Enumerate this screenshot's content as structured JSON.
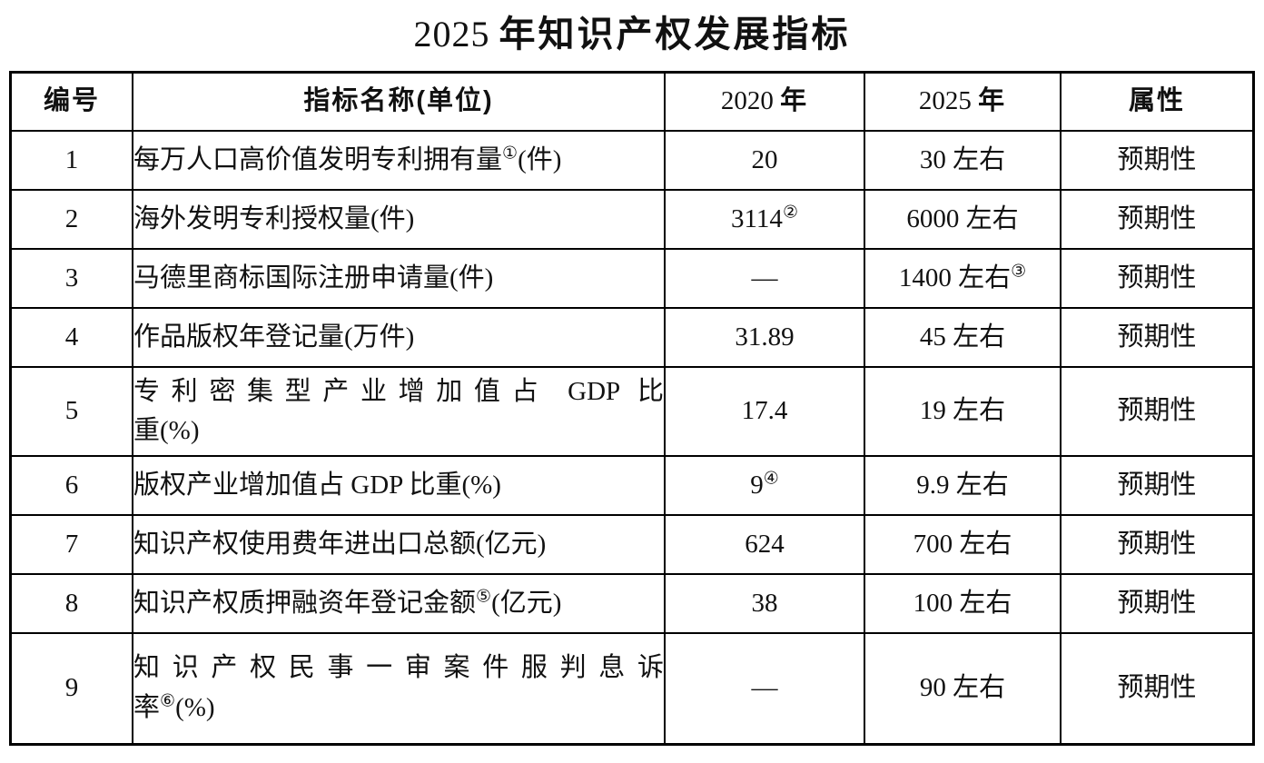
{
  "title": {
    "year": "2025",
    "rest": "年知识产权发展指标"
  },
  "table": {
    "col_no": "编号",
    "col_name": "指标名称(单位)",
    "col_2020": {
      "num": "2020",
      "unit": "年"
    },
    "col_2025": {
      "num": "2025",
      "unit": "年"
    },
    "col_attr": "属性",
    "rows": [
      {
        "no": "1",
        "name": [
          {
            "justify": false,
            "parts": [
              {
                "t": "每万人口高价值发明专利拥有量"
              },
              {
                "sup": "①"
              },
              {
                "t": "(件)"
              }
            ]
          }
        ],
        "y2020": [
          {
            "t": "20"
          }
        ],
        "y2025": [
          {
            "t": "30 左右"
          }
        ],
        "attr": "预期性"
      },
      {
        "no": "2",
        "name": [
          {
            "justify": false,
            "parts": [
              {
                "t": "海外发明专利授权量(件)"
              }
            ]
          }
        ],
        "y2020": [
          {
            "t": "3114"
          },
          {
            "sup": "②"
          }
        ],
        "y2025": [
          {
            "t": "6000 左右"
          }
        ],
        "attr": "预期性"
      },
      {
        "no": "3",
        "name": [
          {
            "justify": false,
            "parts": [
              {
                "t": "马德里商标国际注册申请量(件)"
              }
            ]
          }
        ],
        "y2020": [
          {
            "t": "—"
          }
        ],
        "y2025": [
          {
            "t": "1400 左右"
          },
          {
            "sup": "③"
          }
        ],
        "attr": "预期性"
      },
      {
        "no": "4",
        "name": [
          {
            "justify": false,
            "parts": [
              {
                "t": "作品版权年登记量(万件)"
              }
            ]
          }
        ],
        "y2020": [
          {
            "t": "31.89"
          }
        ],
        "y2025": [
          {
            "t": "45 左右"
          }
        ],
        "attr": "预期性"
      },
      {
        "no": "5",
        "name": [
          {
            "justify": true,
            "parts": [
              {
                "t": "专利密集型产业增加值占 GDP 比"
              }
            ]
          },
          {
            "justify": false,
            "parts": [
              {
                "t": "重(%)"
              }
            ]
          }
        ],
        "y2020": [
          {
            "t": "17.4"
          }
        ],
        "y2025": [
          {
            "t": "19 左右"
          }
        ],
        "attr": "预期性"
      },
      {
        "no": "6",
        "name": [
          {
            "justify": false,
            "parts": [
              {
                "t": "版权产业增加值占 GDP 比重(%)"
              }
            ]
          }
        ],
        "y2020": [
          {
            "t": "9"
          },
          {
            "sup": "④"
          }
        ],
        "y2025": [
          {
            "t": "9.9 左右"
          }
        ],
        "attr": "预期性"
      },
      {
        "no": "7",
        "name": [
          {
            "justify": false,
            "parts": [
              {
                "t": "知识产权使用费年进出口总额(亿元)"
              }
            ]
          }
        ],
        "y2020": [
          {
            "t": "624"
          }
        ],
        "y2025": [
          {
            "t": "700 左右"
          }
        ],
        "attr": "预期性"
      },
      {
        "no": "8",
        "name": [
          {
            "justify": false,
            "parts": [
              {
                "t": "知识产权质押融资年登记金额"
              },
              {
                "sup": "⑤"
              },
              {
                "t": "(亿元)"
              }
            ]
          }
        ],
        "y2020": [
          {
            "t": "38"
          }
        ],
        "y2025": [
          {
            "t": "100 左右"
          }
        ],
        "attr": "预期性"
      },
      {
        "no": "9",
        "name": [
          {
            "justify": true,
            "parts": [
              {
                "t": "知识产权民事一审案件服判息诉"
              }
            ]
          },
          {
            "justify": false,
            "parts": [
              {
                "t": "率"
              },
              {
                "sup": "⑥"
              },
              {
                "t": "(%)"
              }
            ]
          }
        ],
        "y2020": [
          {
            "t": "—"
          }
        ],
        "y2025": [
          {
            "t": "90 左右"
          }
        ],
        "attr": "预期性"
      }
    ]
  }
}
